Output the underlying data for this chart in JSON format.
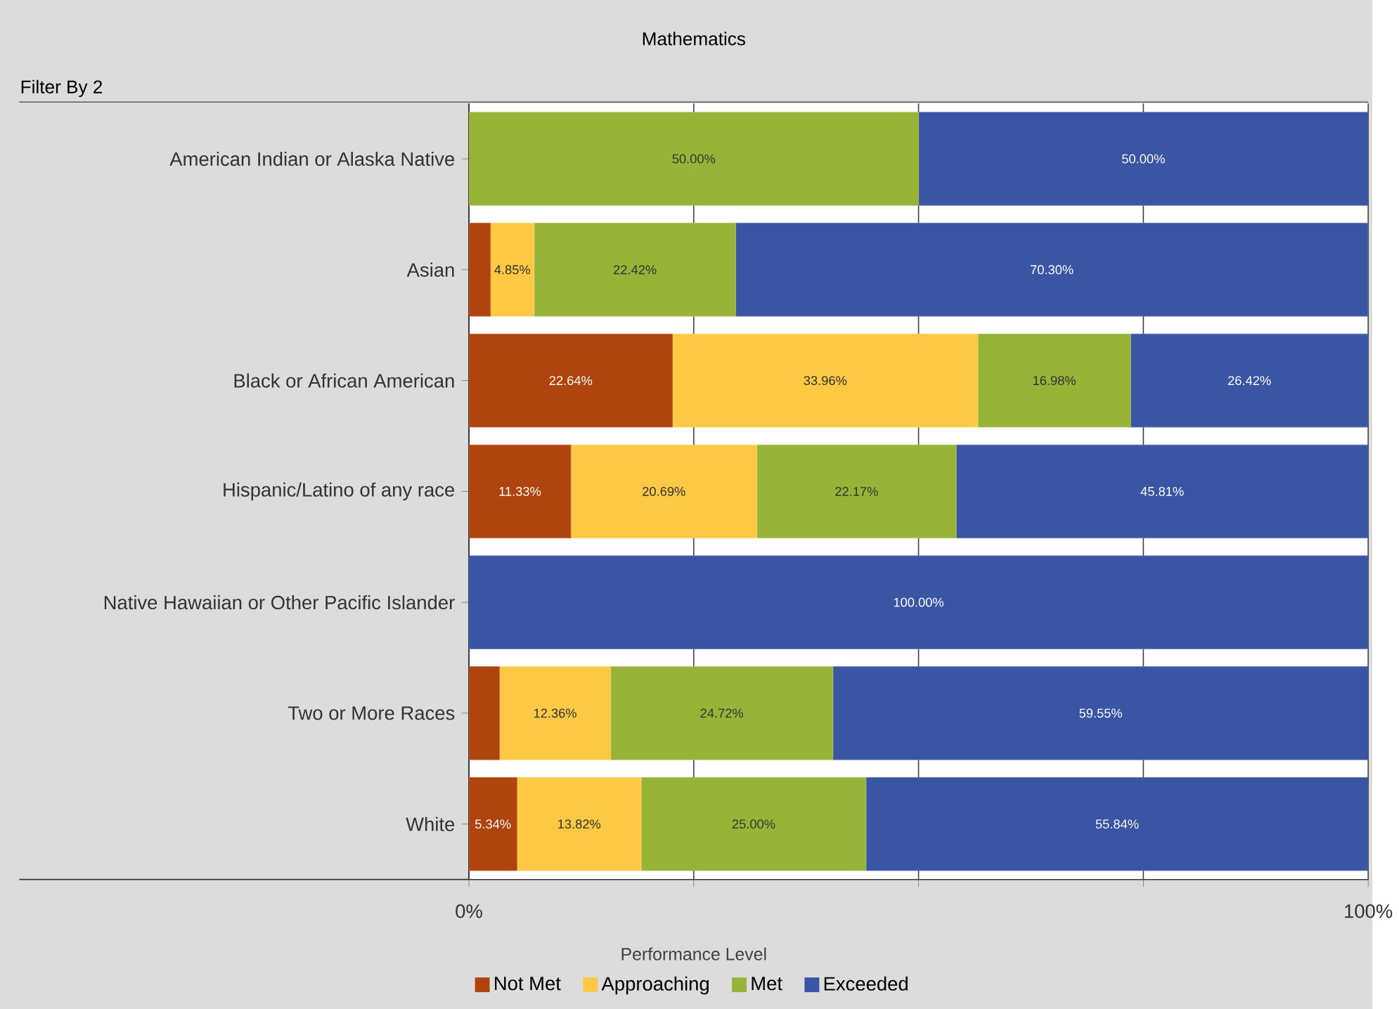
{
  "chart_data": {
    "type": "bar",
    "orientation": "horizontal",
    "stacked": true,
    "title": "Mathematics",
    "annotations": [
      "Filter By 2"
    ],
    "legend_title": "Performance Level",
    "legend": "bottom",
    "grid": "x",
    "categories": [
      "American Indian or Alaska Native",
      "Asian",
      "Black or African American",
      "Hispanic/Latino of any race",
      "Native Hawaiian or Other Pacific Islander",
      "Two or More Races",
      "White"
    ],
    "xlim": [
      0,
      100
    ],
    "xticks": [
      {
        "value": 0,
        "label": "0%"
      },
      {
        "value": 25,
        "label": null
      },
      {
        "value": 50,
        "label": null
      },
      {
        "value": 75,
        "label": null
      },
      {
        "value": 100,
        "label": "100%"
      }
    ],
    "series": [
      {
        "name": "Not Met",
        "color": "#b0440e",
        "values": [
          0,
          2.4,
          22.64,
          11.33,
          0,
          3.4,
          5.34
        ],
        "value_labels": [
          null,
          null,
          "22.64%",
          "11.33%",
          null,
          null,
          "5.34%"
        ]
      },
      {
        "name": "Approaching",
        "color": "#fdc945",
        "values": [
          0,
          4.85,
          33.96,
          20.69,
          0,
          12.36,
          13.82
        ],
        "value_labels": [
          null,
          "4.85%",
          "33.96%",
          "20.69%",
          null,
          "12.36%",
          "13.82%"
        ]
      },
      {
        "name": "Met",
        "color": "#97b438",
        "values": [
          50,
          22.42,
          16.98,
          22.17,
          0,
          24.72,
          25.0
        ],
        "value_labels": [
          "50.00%",
          "22.42%",
          "16.98%",
          "22.17%",
          null,
          "24.72%",
          "25.00%"
        ]
      },
      {
        "name": "Exceeded",
        "color": "#3955a3",
        "values": [
          50,
          70.3,
          26.42,
          45.81,
          100,
          59.55,
          55.84
        ],
        "value_labels": [
          "50.00%",
          "70.30%",
          "26.42%",
          "45.81%",
          "100.00%",
          "59.55%",
          "55.84%"
        ]
      }
    ]
  }
}
